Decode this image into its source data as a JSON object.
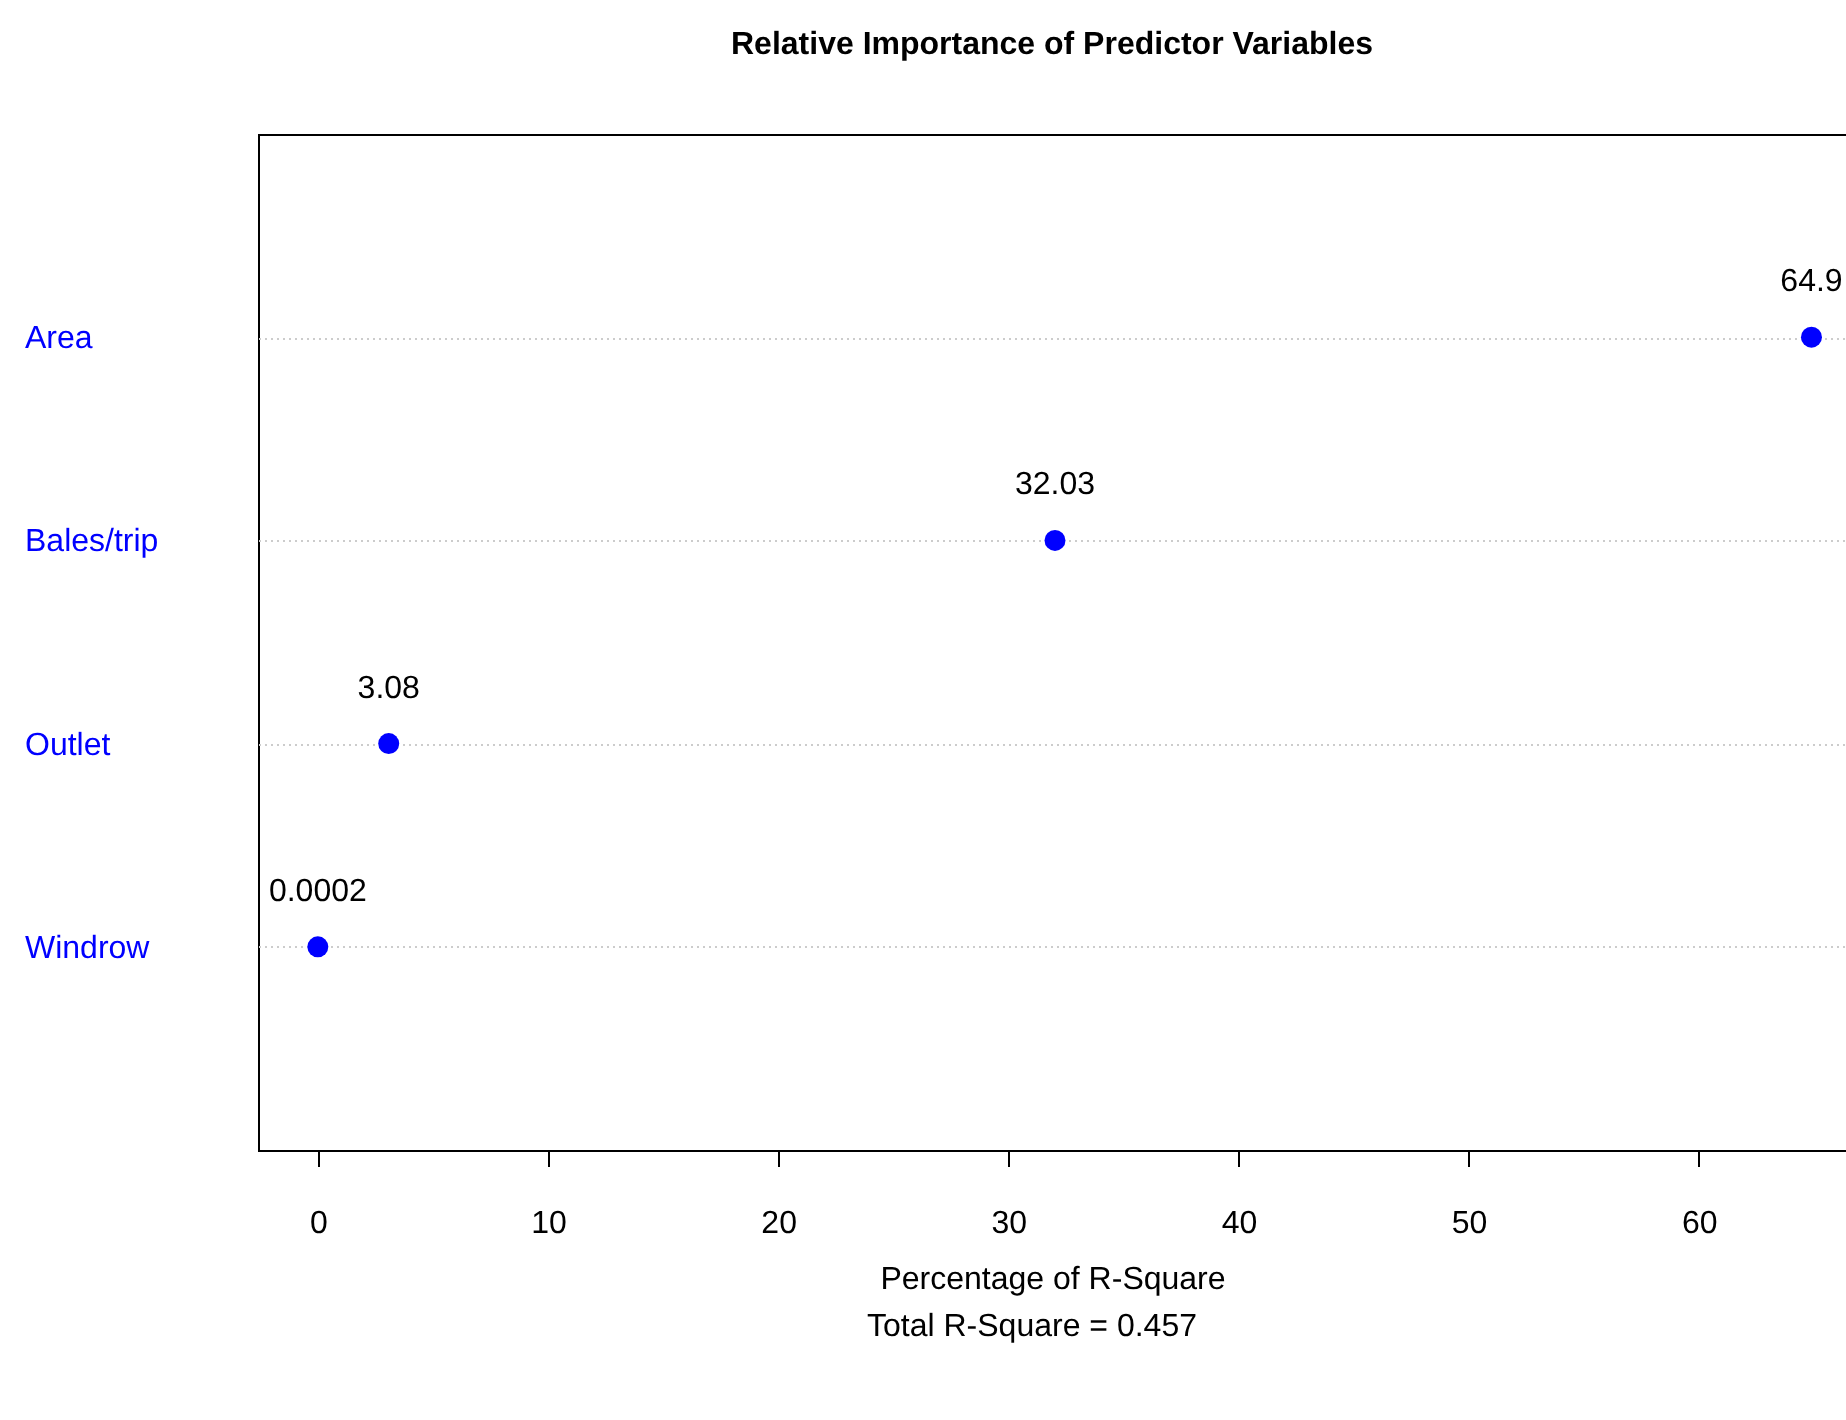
{
  "chart_data": {
    "type": "scatter",
    "title": "Relative Importance of Predictor Variables",
    "xlabel": "Percentage of R-Square",
    "annotations": [
      "Total R-Square = 0.457"
    ],
    "orientation": "horizontal",
    "categories": [
      "Area",
      "Bales/trip",
      "Outlet",
      "Windrow"
    ],
    "values": [
      64.9,
      32.03,
      3.08,
      0.0002
    ],
    "value_labels": [
      "64.9",
      "32.03",
      "3.08",
      "0.0002"
    ],
    "color": "#0000ff",
    "marker": "circle",
    "grid": "y",
    "xlim": [
      -2.6,
      66.4
    ],
    "xticks": [
      0,
      10,
      20,
      30,
      40,
      50,
      60
    ]
  }
}
